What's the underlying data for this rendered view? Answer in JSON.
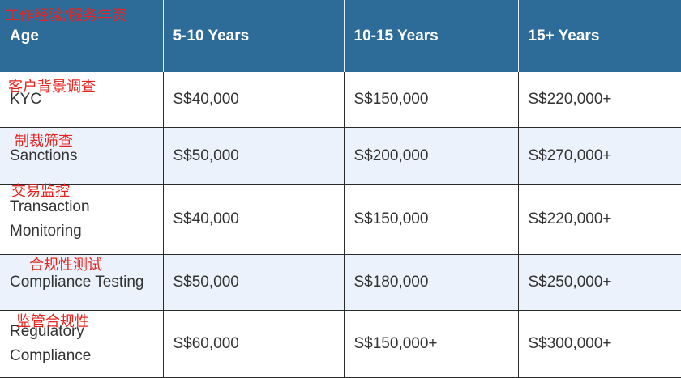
{
  "table": {
    "header": [
      "Age",
      "5-10 Years",
      "10-15 Years",
      "15+ Years"
    ],
    "rows": [
      {
        "role": "KYC",
        "v1": "S$40,000",
        "v2": "S$150,000",
        "v3": "S$220,000+"
      },
      {
        "role": "Sanctions",
        "v1": "S$50,000",
        "v2": "S$200,000",
        "v3": "S$270,000+"
      },
      {
        "role_line1": "Transaction",
        "role_line2": "Monitoring",
        "v1": "S$40,000",
        "v2": "S$150,000",
        "v3": "S$220,000+"
      },
      {
        "role": "Compliance Testing",
        "v1": "S$50,000",
        "v2": "S$180,000",
        "v3": "S$250,000+"
      },
      {
        "role_line1": "Regulatory",
        "role_line2": "Compliance",
        "v1": "S$60,000",
        "v2": "S$150,000+",
        "v3": "S$300,000+"
      }
    ]
  },
  "annotations": {
    "header_note": "工作经验/服务年资",
    "kyc_note": "客户背景调查",
    "sanctions_note": "制裁筛查",
    "transaction_note": "交易监控",
    "testing_note": "合规性测试",
    "regulatory_note": "监管合规性"
  },
  "colors": {
    "header_bg": "#2d6b99",
    "stripe_bg": "#ebf2fb",
    "annotation": "#e8231f"
  }
}
